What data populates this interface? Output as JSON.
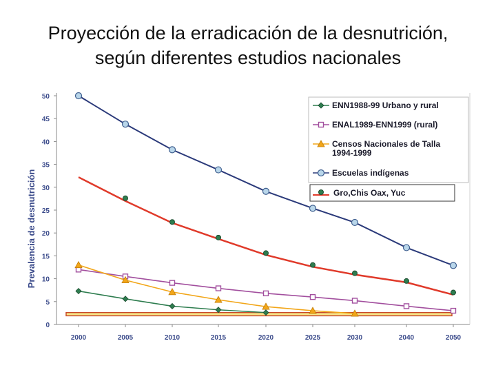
{
  "slide": {
    "title_line1": "Proyección de la erradicación de la desnutrición,",
    "title_line2": "según diferentes estudios nacionales"
  },
  "chart_data": {
    "type": "line",
    "ylabel": "Prevalencia de desnutrición",
    "xlabel": "",
    "categories": [
      "2000",
      "2005",
      "2010",
      "2015",
      "2020",
      "2025",
      "2030",
      "2040",
      "2050"
    ],
    "y_ticks": [
      "0",
      "5",
      "10",
      "15",
      "20",
      "25",
      "30",
      "35",
      "40",
      "45",
      "50"
    ],
    "ylim": [
      0,
      50
    ],
    "grid": false,
    "legend_position": "top-right",
    "series": [
      {
        "name": "ENN1988-99 Urbano y rural",
        "color": "#2e7d4f",
        "marker": "diamond",
        "values": [
          7.3,
          5.6,
          4.0,
          3.2,
          2.6,
          null,
          null,
          null,
          null
        ]
      },
      {
        "name": "ENAL1989-ENN1999 (rural)",
        "color": "#a24f9e",
        "marker": "square",
        "values": [
          12.0,
          10.5,
          9.1,
          7.9,
          6.8,
          6.0,
          5.2,
          4.0,
          3.0
        ]
      },
      {
        "name": "Censos Nacionales de Talla",
        "name_line2": "1994-1999",
        "color": "#f2a619",
        "marker": "triangle",
        "values": [
          13.0,
          9.7,
          7.1,
          5.4,
          3.9,
          3.0,
          2.4,
          null,
          null
        ]
      },
      {
        "name": "Escuelas indígenas",
        "color": "#2b3a7a",
        "marker": "circle",
        "values": [
          50.0,
          43.8,
          38.2,
          33.8,
          29.1,
          25.4,
          22.3,
          16.8,
          12.9
        ]
      },
      {
        "name": "Gro,Chis Oax, Yuc",
        "color": "#2e7d4f",
        "marker": "circle-dark",
        "values": [
          null,
          27.6,
          22.4,
          19.0,
          15.6,
          13.0,
          11.2,
          9.5,
          7.0
        ]
      }
    ],
    "trend_color": "#e03a2a",
    "trend_values": [
      32.2,
      27.0,
      22.2,
      18.7,
      15.2,
      12.6,
      10.9,
      9.2,
      6.5
    ],
    "band_color": "#f7e98a",
    "band_border": "#c94a2a"
  }
}
